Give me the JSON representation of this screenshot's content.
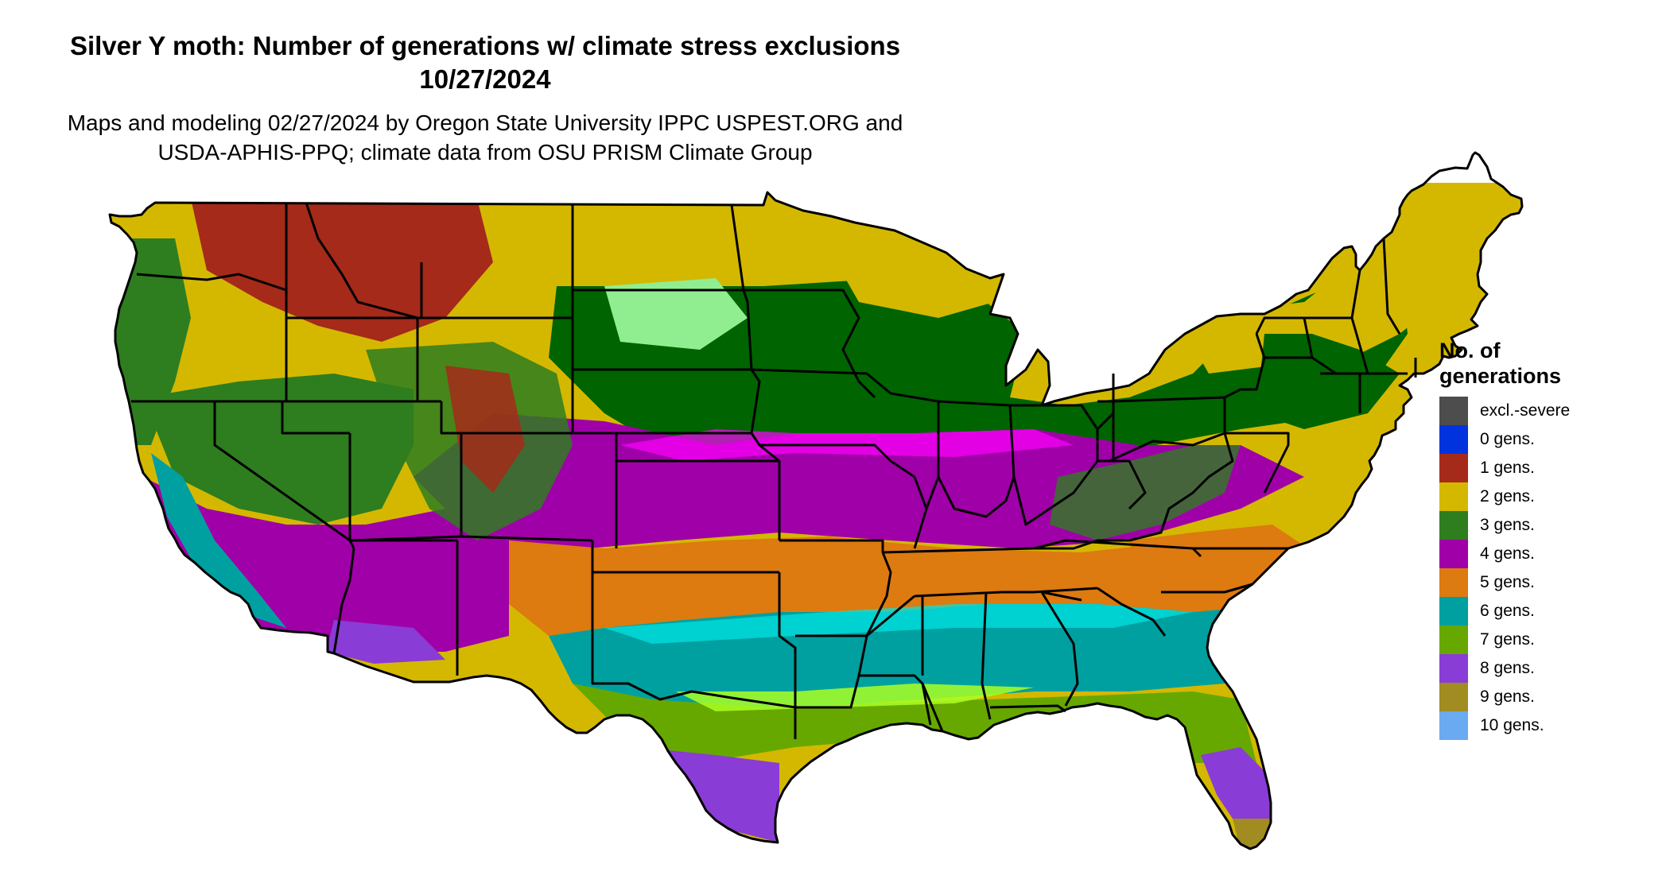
{
  "title": {
    "line1": "Silver Y moth: Number of generations w/ climate stress exclusions",
    "line2": "10/27/2024"
  },
  "subtitle": {
    "line1": "Maps and modeling 02/27/2024 by Oregon State University IPPC USPEST.ORG and",
    "line2": "USDA-APHIS-PPQ; climate data from OSU PRISM Climate Group"
  },
  "legend": {
    "title_line1": "No. of",
    "title_line2": "generations",
    "items": [
      {
        "label": "excl.-severe",
        "color": "#4d4d4d"
      },
      {
        "label": "0 gens.",
        "color": "#0033dd"
      },
      {
        "label": "1 gens.",
        "color": "#a52a1a"
      },
      {
        "label": "2 gens.",
        "color": "#d4b800"
      },
      {
        "label": "3 gens.",
        "color": "#2e7d1f"
      },
      {
        "label": "4 gens.",
        "color": "#a000a8"
      },
      {
        "label": "5 gens.",
        "color": "#dd7a10"
      },
      {
        "label": "6 gens.",
        "color": "#00a0a0"
      },
      {
        "label": "7 gens.",
        "color": "#66a800"
      },
      {
        "label": "8 gens.",
        "color": "#8a3cd6"
      },
      {
        "label": "9 gens.",
        "color": "#a08c20"
      },
      {
        "label": "10 gens.",
        "color": "#6aaaf0"
      }
    ]
  },
  "map": {
    "region": "contiguous-us",
    "extra_colors": {
      "dark_green": "#006400",
      "light_green": "#90ee90",
      "magenta": "#ff00ff",
      "cyan": "#00e5e5",
      "lime": "#aaff22",
      "tan": "#dcc89a",
      "ocean": "#ffffff",
      "border": "#000000"
    }
  }
}
